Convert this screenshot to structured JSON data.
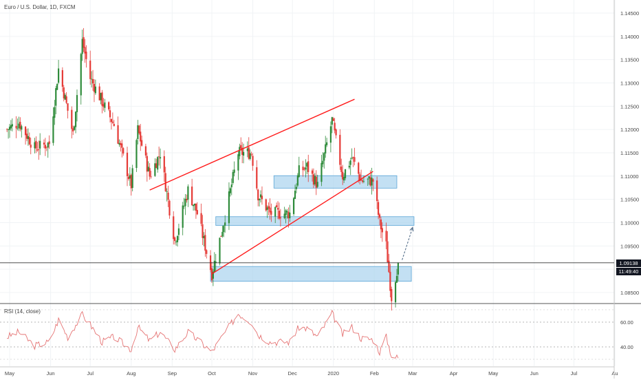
{
  "title": "Euro / U.S. Dollar, 1D, FXCM",
  "price_axis_labels": [
    "1.14500",
    "1.14000",
    "1.13500",
    "1.13000",
    "1.12500",
    "1.12000",
    "1.11500",
    "1.11000",
    "1.10500",
    "1.10000",
    "1.09500",
    "1.09000",
    "1.08500"
  ],
  "current_price_label": "1.09138",
  "countdown_label": "11:49:40",
  "rsi_title": "RSI (14, close)",
  "rsi_axis_labels": [
    "60.00",
    "40.00"
  ],
  "month_labels": [
    "May",
    "Jun",
    "Jul",
    "Aug",
    "Sep",
    "Oct",
    "Nov",
    "Dec",
    "2020",
    "Feb",
    "Mar",
    "Apr",
    "May",
    "Jun",
    "Jul",
    "Au"
  ],
  "colors": {
    "up": "#2e8b3a",
    "down": "#e53935",
    "trendline": "#ff1b1b",
    "zone_fill": "#a9d3ee",
    "zone_border": "#5aa5d6",
    "rsi": "#e57373",
    "arrow": "#546e8a"
  },
  "chart_data": {
    "type": "candlestick",
    "title": "Euro / U.S. Dollar, 1D, FXCM",
    "y_range": [
      1.0825,
      1.1475
    ],
    "last_price": 1.09138,
    "close_path": [
      {
        "x": "2019-04-29",
        "y": 1.12
      },
      {
        "x": "2019-05-08",
        "y": 1.1215
      },
      {
        "x": "2019-05-20",
        "y": 1.116
      },
      {
        "x": "2019-05-31",
        "y": 1.117
      },
      {
        "x": "2019-06-07",
        "y": 1.133
      },
      {
        "x": "2019-06-18",
        "y": 1.119
      },
      {
        "x": "2019-06-25",
        "y": 1.139
      },
      {
        "x": "2019-07-01",
        "y": 1.131
      },
      {
        "x": "2019-07-10",
        "y": 1.126
      },
      {
        "x": "2019-07-19",
        "y": 1.121
      },
      {
        "x": "2019-08-01",
        "y": 1.108
      },
      {
        "x": "2019-08-06",
        "y": 1.12
      },
      {
        "x": "2019-08-15",
        "y": 1.11
      },
      {
        "x": "2019-08-23",
        "y": 1.115
      },
      {
        "x": "2019-09-03",
        "y": 1.096
      },
      {
        "x": "2019-09-13",
        "y": 1.107
      },
      {
        "x": "2019-09-20",
        "y": 1.102
      },
      {
        "x": "2019-10-01",
        "y": 1.089
      },
      {
        "x": "2019-10-10",
        "y": 1.1
      },
      {
        "x": "2019-10-21",
        "y": 1.115
      },
      {
        "x": "2019-10-31",
        "y": 1.115
      },
      {
        "x": "2019-11-05",
        "y": 1.106
      },
      {
        "x": "2019-11-14",
        "y": 1.102
      },
      {
        "x": "2019-11-29",
        "y": 1.102
      },
      {
        "x": "2019-12-06",
        "y": 1.111
      },
      {
        "x": "2019-12-12",
        "y": 1.112
      },
      {
        "x": "2019-12-20",
        "y": 1.108
      },
      {
        "x": "2019-12-31",
        "y": 1.122
      },
      {
        "x": "2020-01-08",
        "y": 1.11
      },
      {
        "x": "2020-01-15",
        "y": 1.114
      },
      {
        "x": "2020-01-22",
        "y": 1.109
      },
      {
        "x": "2020-01-31",
        "y": 1.109
      },
      {
        "x": "2020-02-05",
        "y": 1.1
      },
      {
        "x": "2020-02-10",
        "y": 1.095
      },
      {
        "x": "2020-02-14",
        "y": 1.084
      },
      {
        "x": "2020-02-19",
        "y": 1.0914
      }
    ],
    "annotations": {
      "upper_trendline": [
        {
          "x": "2019-08-15",
          "y": 1.107
        },
        {
          "x": "2020-01-17",
          "y": 1.1265
        }
      ],
      "lower_trendline": [
        {
          "x": "2019-10-01",
          "y": 1.089
        },
        {
          "x": "2020-01-31",
          "y": 1.111
        }
      ],
      "zones": [
        {
          "x_from": "2019-11-17",
          "x_to": "2020-02-18",
          "y_low": 1.108,
          "y_high": 1.1095
        },
        {
          "x_from": "2019-10-04",
          "x_to": "2020-03-02",
          "y_low": 1.1,
          "y_high": 1.1007
        },
        {
          "x_from": "2019-09-30",
          "x_to": "2020-02-29",
          "y_low": 1.088,
          "y_high": 1.09
        }
      ],
      "projection_arrow": [
        {
          "x": "2020-02-22",
          "y": 1.092
        },
        {
          "x": "2020-03-01",
          "y": 1.099
        }
      ]
    },
    "rsi": {
      "label": "RSI (14, close)",
      "ticks": [
        60,
        40
      ],
      "y_range": [
        25,
        75
      ],
      "values": [
        {
          "x": "2019-04-29",
          "y": 48
        },
        {
          "x": "2019-05-08",
          "y": 52
        },
        {
          "x": "2019-05-20",
          "y": 41
        },
        {
          "x": "2019-05-31",
          "y": 44
        },
        {
          "x": "2019-06-07",
          "y": 62
        },
        {
          "x": "2019-06-14",
          "y": 48
        },
        {
          "x": "2019-06-25",
          "y": 66
        },
        {
          "x": "2019-07-01",
          "y": 58
        },
        {
          "x": "2019-07-10",
          "y": 44
        },
        {
          "x": "2019-07-19",
          "y": 48
        },
        {
          "x": "2019-08-01",
          "y": 38
        },
        {
          "x": "2019-08-06",
          "y": 56
        },
        {
          "x": "2019-08-15",
          "y": 45
        },
        {
          "x": "2019-08-23",
          "y": 52
        },
        {
          "x": "2019-09-03",
          "y": 38
        },
        {
          "x": "2019-09-13",
          "y": 52
        },
        {
          "x": "2019-09-20",
          "y": 46
        },
        {
          "x": "2019-10-01",
          "y": 36
        },
        {
          "x": "2019-10-10",
          "y": 50
        },
        {
          "x": "2019-10-21",
          "y": 67
        },
        {
          "x": "2019-10-31",
          "y": 60
        },
        {
          "x": "2019-11-05",
          "y": 50
        },
        {
          "x": "2019-11-14",
          "y": 44
        },
        {
          "x": "2019-11-29",
          "y": 44
        },
        {
          "x": "2019-12-06",
          "y": 56
        },
        {
          "x": "2019-12-12",
          "y": 55
        },
        {
          "x": "2019-12-20",
          "y": 48
        },
        {
          "x": "2019-12-31",
          "y": 67
        },
        {
          "x": "2020-01-08",
          "y": 50
        },
        {
          "x": "2020-01-15",
          "y": 56
        },
        {
          "x": "2020-01-22",
          "y": 47
        },
        {
          "x": "2020-01-31",
          "y": 46
        },
        {
          "x": "2020-02-05",
          "y": 36
        },
        {
          "x": "2020-02-10",
          "y": 48
        },
        {
          "x": "2020-02-14",
          "y": 33
        },
        {
          "x": "2020-02-19",
          "y": 31
        }
      ]
    }
  }
}
